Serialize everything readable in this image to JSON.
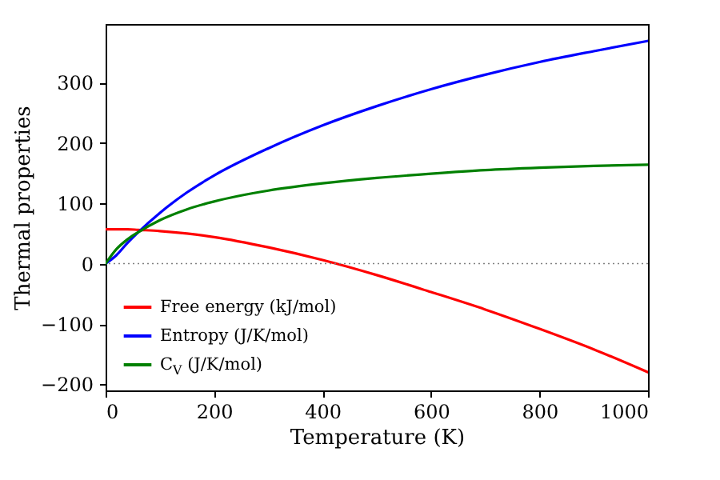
{
  "chart_data": {
    "type": "line",
    "xlabel": "Temperature (K)",
    "ylabel": "Thermal properties",
    "x": [
      0,
      20,
      40,
      60,
      100,
      150,
      200,
      300,
      400,
      500,
      600,
      700,
      800,
      900,
      1000
    ],
    "series": [
      {
        "name": "Free energy (kJ/mol)",
        "color": "#ff0000",
        "values": [
          57,
          57,
          57,
          56,
          54,
          50,
          44,
          27,
          6,
          -19,
          -47,
          -76,
          -108,
          -142,
          -180
        ]
      },
      {
        "name": "Entropy (J/K/mol)",
        "color": "#0000ff",
        "values": [
          0,
          14,
          34,
          52,
          84,
          118,
          146,
          191,
          229,
          261,
          289,
          313,
          334,
          352,
          369
        ]
      },
      {
        "name": "C$_{V}$ (J/K/mol)",
        "color": "#008000",
        "values": [
          0,
          24,
          40,
          52,
          72,
          90,
          103,
          121,
          133,
          142,
          149,
          155,
          159,
          162,
          164
        ]
      }
    ],
    "xlim": [
      0,
      1000
    ],
    "xticks": [
      0,
      200,
      400,
      600,
      800,
      1000
    ],
    "ylim": [
      -210,
      397
    ],
    "yticks": [
      -200,
      -100,
      0,
      100,
      200,
      300
    ],
    "ref_lines": [
      {
        "axis": "y",
        "value": 0,
        "color": "#808080",
        "line_style": "dotted"
      }
    ],
    "legend": "bottom left",
    "grid": false,
    "line_style": "solid",
    "marker": "none"
  }
}
